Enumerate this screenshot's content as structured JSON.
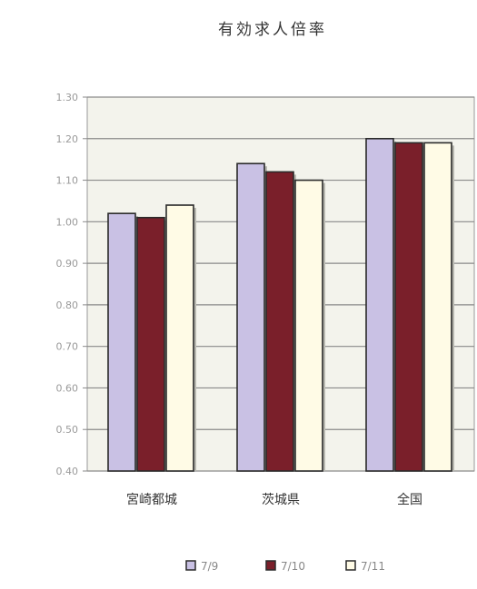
{
  "chart_data": {
    "type": "bar",
    "title": "有効求人倍率",
    "categories": [
      "宮崎都城",
      "茨城県",
      "全国"
    ],
    "series": [
      {
        "name": "7/9",
        "values": [
          1.02,
          1.14,
          1.2
        ],
        "color": "#c9c1e4"
      },
      {
        "name": "7/10",
        "values": [
          1.01,
          1.12,
          1.19
        ],
        "color": "#7a1f2a"
      },
      {
        "name": "7/11",
        "values": [
          1.04,
          1.1,
          1.19
        ],
        "color": "#fffbe6"
      }
    ],
    "ylim": [
      0.4,
      1.3
    ],
    "yticks": [
      {
        "value": 1.3,
        "label": "1.30"
      },
      {
        "value": 1.2,
        "label": "1.20"
      },
      {
        "value": 1.1,
        "label": "1.10"
      },
      {
        "value": 1.0,
        "label": "1.00"
      },
      {
        "value": 0.9,
        "label": "0.90"
      },
      {
        "value": 0.8,
        "label": "0.80"
      },
      {
        "value": 0.7,
        "label": "0.70"
      },
      {
        "value": 0.6,
        "label": "0.60"
      },
      {
        "value": 0.5,
        "label": "0.50"
      },
      {
        "value": 0.4,
        "label": "0.40"
      }
    ],
    "grid": true,
    "legend_position": "bottom",
    "plot_background": "#f3f3ec",
    "grid_color": "#8a8a8a"
  }
}
